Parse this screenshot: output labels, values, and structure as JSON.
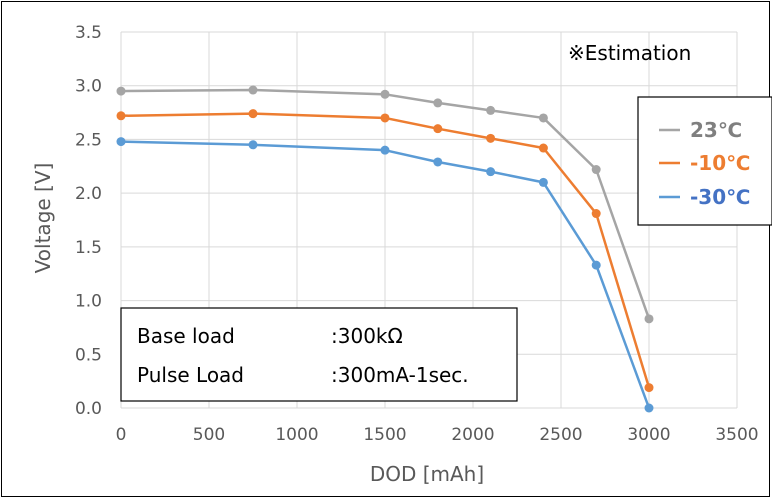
{
  "chart_data": {
    "type": "line",
    "title": "",
    "xlabel": "DOD [mAh]",
    "ylabel": "Voltage [V]",
    "xlim": [
      0,
      3500
    ],
    "ylim": [
      0,
      3.5
    ],
    "x_ticks": [
      "0",
      "500",
      "1000",
      "1500",
      "2000",
      "2500",
      "3000",
      "3500"
    ],
    "y_ticks": [
      "0.0",
      "0.5",
      "1.0",
      "1.5",
      "2.0",
      "2.5",
      "3.0",
      "3.5"
    ],
    "grid": true,
    "legend_position": "right",
    "annotation": "※Estimation",
    "conditions": [
      {
        "label": "Base load",
        "value": ":300kΩ"
      },
      {
        "label": "Pulse Load",
        "value": ":300mA-1sec."
      }
    ],
    "series": [
      {
        "name": "23℃",
        "color": "#a5a5a5",
        "x": [
          0,
          750,
          1500,
          1800,
          2100,
          2400,
          2700,
          3000
        ],
        "y": [
          2.95,
          2.96,
          2.92,
          2.84,
          2.77,
          2.7,
          2.22,
          0.83
        ]
      },
      {
        "name": "-10℃",
        "color": "#ed7d31",
        "x": [
          0,
          750,
          1500,
          1800,
          2100,
          2400,
          2700,
          3000
        ],
        "y": [
          2.72,
          2.74,
          2.7,
          2.6,
          2.51,
          2.42,
          1.81,
          0.19
        ]
      },
      {
        "name": "-30℃",
        "color": "#5b9bd5",
        "x": [
          0,
          750,
          1500,
          1800,
          2100,
          2400,
          2700,
          3000
        ],
        "y": [
          2.48,
          2.45,
          2.4,
          2.29,
          2.2,
          2.1,
          1.33,
          0.0
        ]
      }
    ]
  }
}
